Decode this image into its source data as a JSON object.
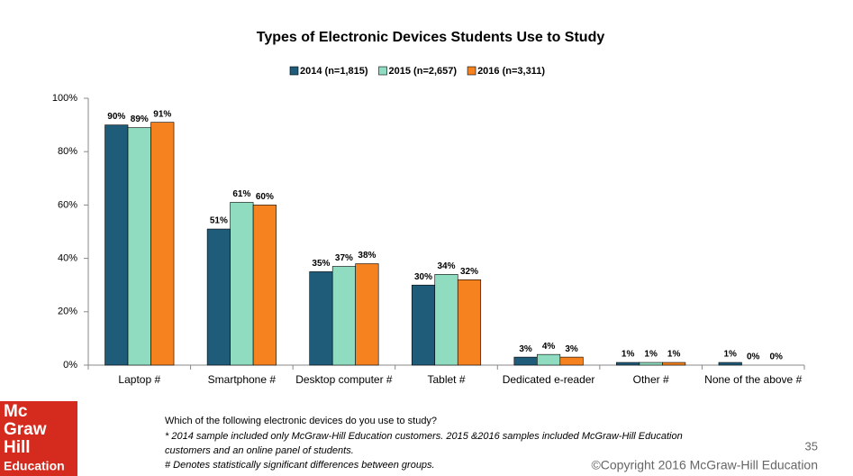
{
  "chart_data": {
    "type": "bar",
    "title": "Types of Electronic Devices Students Use to Study",
    "categories": [
      "Laptop #",
      "Smartphone #",
      "Desktop computer #",
      "Tablet #",
      "Dedicated e-reader",
      "Other #",
      "None of the above #"
    ],
    "series": [
      {
        "name": "2014 (n=1,815)",
        "color": "#1f5c7a",
        "values": [
          90,
          51,
          35,
          30,
          3,
          1,
          1
        ],
        "value_labels": [
          "90%",
          "51%",
          "35%",
          "30%",
          "3%",
          "1%",
          "1%"
        ]
      },
      {
        "name": "2015 (n=2,657)",
        "color": "#8fdcc0",
        "values": [
          89,
          61,
          37,
          34,
          4,
          1,
          0
        ],
        "value_labels": [
          "89%",
          "61%",
          "37%",
          "34%",
          "4%",
          "1%",
          "0%"
        ]
      },
      {
        "name": "2016 (n=3,311)",
        "color": "#f5821f",
        "values": [
          91,
          60,
          38,
          32,
          3,
          1,
          0
        ],
        "value_labels": [
          "91%",
          "60%",
          "38%",
          "32%",
          "3%",
          "1%",
          "0%"
        ]
      }
    ],
    "ylim": [
      0,
      100
    ],
    "yticks": [
      {
        "value": 0,
        "label": "0%"
      },
      {
        "value": 20,
        "label": "20%"
      },
      {
        "value": 40,
        "label": "40%"
      },
      {
        "value": 60,
        "label": "60%"
      },
      {
        "value": 80,
        "label": "80%"
      },
      {
        "value": 100,
        "label": "100%"
      }
    ],
    "grid": false,
    "legend": "top"
  },
  "footnotes": [
    "Which of the following electronic devices do you use to study?",
    "* 2014 sample included only McGraw-Hill Education customers. 2015 &2016 samples included McGraw-Hill Education",
    "customers and an online panel of students.",
    "# Denotes statistically significant differences between groups."
  ],
  "page_number": "35",
  "copyright": "©Copyright  2016 McGraw-Hill Education",
  "logo": [
    "Mc",
    "Graw",
    "Hill",
    "Education"
  ]
}
